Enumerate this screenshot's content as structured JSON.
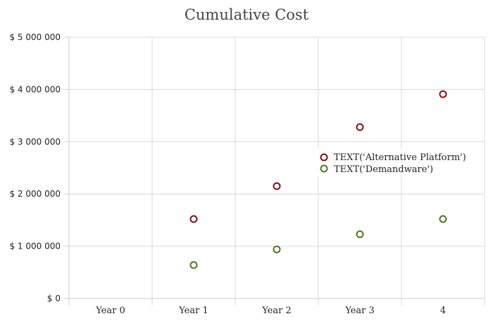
{
  "chart_data": {
    "type": "scatter",
    "title": "Cumulative Cost",
    "categories": [
      "Year 0",
      "Year 1",
      "Year 2",
      "Year 3",
      "4"
    ],
    "y_tick_labels": [
      "$ 0",
      "$ 1 000 000",
      "$ 2 000 000",
      "$ 3 000 000",
      "$ 4 000 000",
      "$ 5 000 000"
    ],
    "ylim": [
      0,
      5000000
    ],
    "grid": true,
    "legend_position": "right",
    "series": [
      {
        "name": "TEXT('Alternative Platform')",
        "color": "#8b0a14",
        "values": [
          null,
          1520000,
          2150000,
          3280000,
          3910000
        ]
      },
      {
        "name": "TEXT('Demandware')",
        "color": "#4a7a1e",
        "values": [
          null,
          640000,
          940000,
          1230000,
          1520000
        ]
      }
    ]
  }
}
